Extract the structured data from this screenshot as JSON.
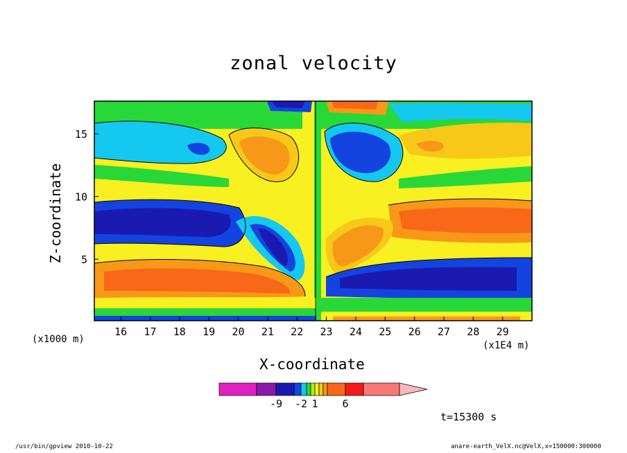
{
  "chart_data": {
    "type": "heatmap",
    "title": "zonal velocity",
    "xlabel": "X-coordinate",
    "ylabel": "Z-coordinate",
    "x_unit": "(x1E4 m)",
    "y_unit": "(x1000 m)",
    "x_ticks": [
      "16",
      "17",
      "18",
      "19",
      "20",
      "21",
      "22",
      "23",
      "24",
      "25",
      "26",
      "27",
      "28",
      "29"
    ],
    "y_ticks": [
      "5",
      "10",
      "15"
    ],
    "xlim": [
      15.1,
      30.0
    ],
    "ylim": [
      0.1,
      17.6
    ],
    "colorbar": {
      "labels": [
        "-9",
        "-2",
        "1",
        "6"
      ],
      "colors": [
        "#e020c0",
        "#8a1aa8",
        "#1b1ab0",
        "#1444e0",
        "#14c8f0",
        "#28d838",
        "#b4f018",
        "#f8f020",
        "#f8c818",
        "#f89818",
        "#f86818",
        "#f81818",
        "#f87878",
        "#f8b8c0"
      ]
    },
    "time_label": "t=15300 s",
    "footer_left": "/usr/bin/gpview   2010-10-22",
    "footer_right": "anare-earth_VelX.nc@VelX,x=150000:300000"
  }
}
